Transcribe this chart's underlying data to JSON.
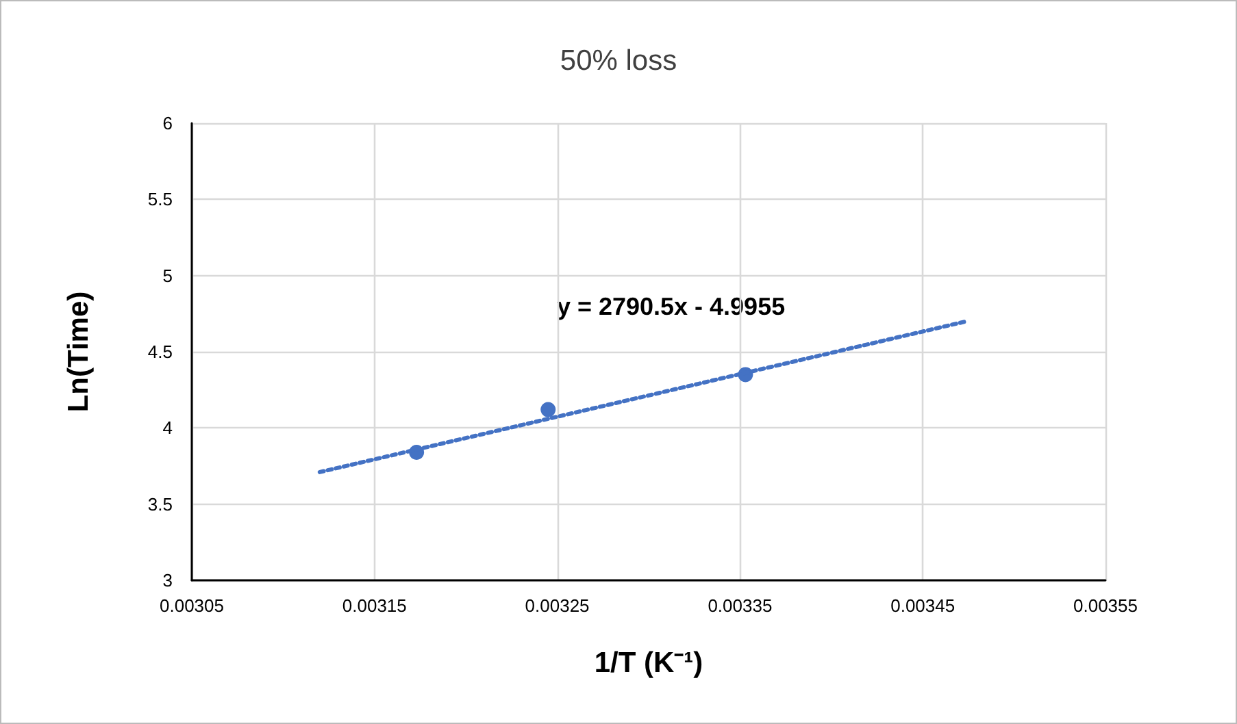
{
  "chart_data": {
    "type": "scatter",
    "title": "50% loss",
    "xlabel": "1/T (K⁻¹)",
    "ylabel": "Ln(Time)",
    "annotations": [
      "y = 2790.5x - 4.9955"
    ],
    "series": [
      {
        "color": "#4472c4",
        "x": [
          0.003173,
          0.003245,
          0.003353
        ],
        "values": [
          3.84,
          4.12,
          4.35
        ],
        "marker": "circle"
      },
      {
        "type": "line",
        "color": "#4472c4",
        "x": [
          0.00312,
          0.003474
        ],
        "values": [
          3.71,
          4.7
        ],
        "marker": "none",
        "line_style": "dotted"
      }
    ],
    "xlim": [
      0.00305,
      0.00355
    ],
    "xticks": [
      0.00305,
      0.00315,
      0.00325,
      0.00335,
      0.00345,
      0.00355
    ],
    "ylim": [
      3,
      6
    ],
    "yticks": [
      3,
      3.5,
      4,
      4.5,
      5,
      5.5,
      6
    ],
    "grid": true
  }
}
